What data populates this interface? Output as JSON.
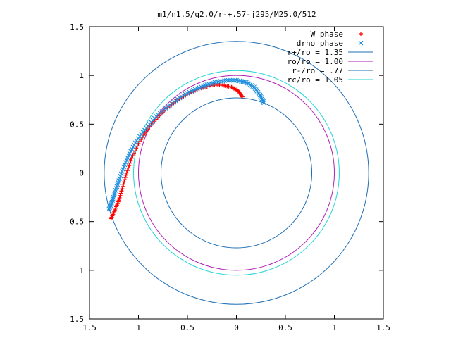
{
  "chart_data": {
    "type": "scatter",
    "title": "m1/n1.5/q2.0/r-+.57-j295/M25.0/512",
    "xlabel": "",
    "ylabel": "",
    "xlim": [
      -1.5,
      1.5
    ],
    "ylim": [
      -1.5,
      1.5
    ],
    "xticks": [
      -1.5,
      -1,
      -0.5,
      0,
      0.5,
      1,
      1.5
    ],
    "yticks": [
      -1.5,
      -1,
      -0.5,
      0,
      0.5,
      1,
      1.5
    ],
    "xtick_labels": [
      "1.5",
      "1",
      "0.5",
      "0",
      "0.5",
      "1",
      "1.5"
    ],
    "ytick_labels": [
      "1.5",
      "1",
      "0.5",
      "0",
      "0.5",
      "1",
      "1.5"
    ],
    "grid": false,
    "legend_position": "top-right",
    "circles": [
      {
        "name": "r+/ro = 1.35",
        "r": 1.35,
        "color": "#1f6fb5"
      },
      {
        "name": "ro/ro = 1.00",
        "r": 1.0,
        "color": "#b01fb5"
      },
      {
        "name": "r-/ro = .77",
        "r": 0.77,
        "color": "#1f6fb5"
      },
      {
        "name": "rc/ro = 1.05",
        "r": 1.05,
        "color": "#22d4d4"
      }
    ],
    "series": [
      {
        "name": "W phase",
        "marker": "+",
        "color": "#ff0000",
        "x": [
          0.06,
          0.02,
          -0.05,
          -0.14,
          -0.24,
          -0.36,
          -0.48,
          -0.6,
          -0.72,
          -0.82,
          -0.92,
          -1.0,
          -1.07,
          -1.12,
          -1.16,
          -1.2,
          -1.24,
          -1.28
        ],
        "y": [
          0.78,
          0.84,
          0.88,
          0.9,
          0.9,
          0.87,
          0.82,
          0.75,
          0.66,
          0.55,
          0.43,
          0.3,
          0.15,
          0.0,
          -0.14,
          -0.28,
          -0.38,
          -0.47
        ]
      },
      {
        "name": "drho phase",
        "marker": "x",
        "color": "#1f8fe0",
        "x": [
          0.28,
          0.24,
          0.18,
          0.1,
          0.0,
          -0.1,
          -0.22,
          -0.34,
          -0.46,
          -0.58,
          -0.7,
          -0.82,
          -0.92,
          -1.02,
          -1.09,
          -1.15,
          -1.2,
          -1.24,
          -1.27,
          -1.3
        ],
        "y": [
          0.72,
          0.8,
          0.88,
          0.93,
          0.95,
          0.95,
          0.93,
          0.89,
          0.84,
          0.77,
          0.68,
          0.58,
          0.46,
          0.33,
          0.2,
          0.06,
          -0.08,
          -0.2,
          -0.3,
          -0.37
        ]
      }
    ]
  }
}
